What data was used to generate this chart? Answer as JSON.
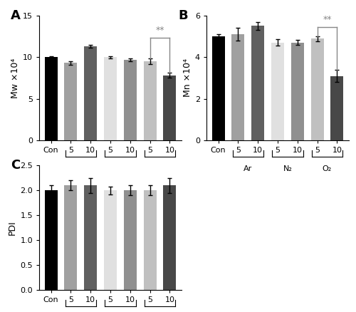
{
  "categories": [
    "Con",
    "5",
    "10",
    "5",
    "10",
    "5",
    "10"
  ],
  "group_labels": [
    "Ar",
    "N₂",
    "O₂"
  ],
  "bar_colors": [
    "#000000",
    "#a0a0a0",
    "#606060",
    "#e0e0e0",
    "#909090",
    "#c0c0c0",
    "#484848"
  ],
  "mw_values": [
    10.0,
    9.3,
    11.3,
    10.0,
    9.7,
    9.5,
    7.8
  ],
  "mw_errors": [
    0.15,
    0.25,
    0.2,
    0.15,
    0.15,
    0.35,
    0.3
  ],
  "mn_values": [
    5.0,
    5.1,
    5.5,
    4.7,
    4.7,
    4.9,
    3.1
  ],
  "mn_errors": [
    0.1,
    0.3,
    0.2,
    0.15,
    0.12,
    0.12,
    0.3
  ],
  "pdi_values": [
    2.0,
    2.1,
    2.1,
    2.0,
    2.0,
    2.0,
    2.1
  ],
  "pdi_errors": [
    0.1,
    0.1,
    0.15,
    0.08,
    0.1,
    0.1,
    0.15
  ],
  "mw_ylim": [
    0,
    15
  ],
  "mn_ylim": [
    0,
    6
  ],
  "pdi_ylim": [
    0.0,
    2.5
  ],
  "mw_yticks": [
    0,
    5,
    10,
    15
  ],
  "mn_yticks": [
    0,
    2,
    4,
    6
  ],
  "pdi_yticks": [
    0.0,
    0.5,
    1.0,
    1.5,
    2.0,
    2.5
  ],
  "mw_ylabel": "Mw ×10⁴",
  "mn_ylabel": "Mn ×10⁴",
  "pdi_ylabel": "PDI",
  "panel_labels": [
    "A",
    "B",
    "C"
  ],
  "sig_color": "#888888"
}
